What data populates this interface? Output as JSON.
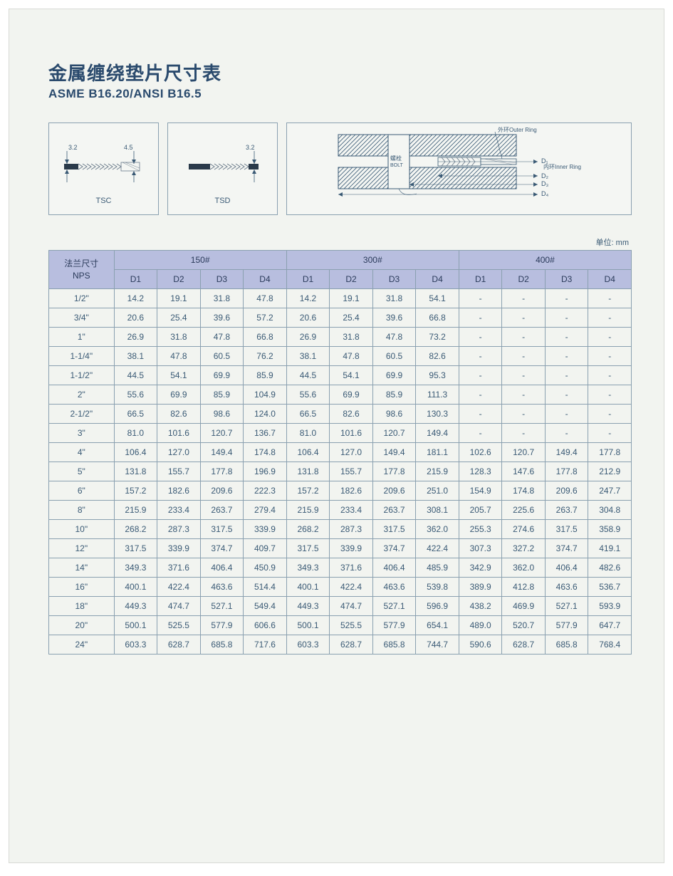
{
  "title_cn": "金属缠绕垫片尺寸表",
  "title_en": "ASME B16.20/ANSI B16.5",
  "unit_label": "单位: mm",
  "diagrams": {
    "tsc_label": "TSC",
    "tsd_label": "TSD",
    "tsc_dim_left": "3.2",
    "tsc_dim_right": "4.5",
    "tsd_dim": "3.2",
    "outer_ring_label": "外环Outer Ring",
    "inner_ring_label": "内环Inner Ring",
    "bolt_label_cn": "螺栓",
    "bolt_label_en": "BOLT",
    "d1_label": "D₁",
    "d2_label": "D₂",
    "d3_label": "D₃",
    "d4_label": "D₄"
  },
  "table": {
    "nps_header_cn": "法兰尺寸",
    "nps_header_en": "NPS",
    "class_headers": [
      "150#",
      "300#",
      "400#"
    ],
    "sub_headers": [
      "D1",
      "D2",
      "D3",
      "D4"
    ],
    "rows": [
      {
        "nps": "1/2\"",
        "v": [
          "14.2",
          "19.1",
          "31.8",
          "47.8",
          "14.2",
          "19.1",
          "31.8",
          "54.1",
          "-",
          "-",
          "-",
          "-"
        ]
      },
      {
        "nps": "3/4\"",
        "v": [
          "20.6",
          "25.4",
          "39.6",
          "57.2",
          "20.6",
          "25.4",
          "39.6",
          "66.8",
          "-",
          "-",
          "-",
          "-"
        ]
      },
      {
        "nps": "1\"",
        "v": [
          "26.9",
          "31.8",
          "47.8",
          "66.8",
          "26.9",
          "31.8",
          "47.8",
          "73.2",
          "-",
          "-",
          "-",
          "-"
        ]
      },
      {
        "nps": "1-1/4\"",
        "v": [
          "38.1",
          "47.8",
          "60.5",
          "76.2",
          "38.1",
          "47.8",
          "60.5",
          "82.6",
          "-",
          "-",
          "-",
          "-"
        ]
      },
      {
        "nps": "1-1/2\"",
        "v": [
          "44.5",
          "54.1",
          "69.9",
          "85.9",
          "44.5",
          "54.1",
          "69.9",
          "95.3",
          "-",
          "-",
          "-",
          "-"
        ]
      },
      {
        "nps": "2\"",
        "v": [
          "55.6",
          "69.9",
          "85.9",
          "104.9",
          "55.6",
          "69.9",
          "85.9",
          "111.3",
          "-",
          "-",
          "-",
          "-"
        ]
      },
      {
        "nps": "2-1/2\"",
        "v": [
          "66.5",
          "82.6",
          "98.6",
          "124.0",
          "66.5",
          "82.6",
          "98.6",
          "130.3",
          "-",
          "-",
          "-",
          "-"
        ]
      },
      {
        "nps": "3\"",
        "v": [
          "81.0",
          "101.6",
          "120.7",
          "136.7",
          "81.0",
          "101.6",
          "120.7",
          "149.4",
          "-",
          "-",
          "-",
          "-"
        ]
      },
      {
        "nps": "4\"",
        "v": [
          "106.4",
          "127.0",
          "149.4",
          "174.8",
          "106.4",
          "127.0",
          "149.4",
          "181.1",
          "102.6",
          "120.7",
          "149.4",
          "177.8"
        ]
      },
      {
        "nps": "5\"",
        "v": [
          "131.8",
          "155.7",
          "177.8",
          "196.9",
          "131.8",
          "155.7",
          "177.8",
          "215.9",
          "128.3",
          "147.6",
          "177.8",
          "212.9"
        ]
      },
      {
        "nps": "6\"",
        "v": [
          "157.2",
          "182.6",
          "209.6",
          "222.3",
          "157.2",
          "182.6",
          "209.6",
          "251.0",
          "154.9",
          "174.8",
          "209.6",
          "247.7"
        ]
      },
      {
        "nps": "8\"",
        "v": [
          "215.9",
          "233.4",
          "263.7",
          "279.4",
          "215.9",
          "233.4",
          "263.7",
          "308.1",
          "205.7",
          "225.6",
          "263.7",
          "304.8"
        ]
      },
      {
        "nps": "10\"",
        "v": [
          "268.2",
          "287.3",
          "317.5",
          "339.9",
          "268.2",
          "287.3",
          "317.5",
          "362.0",
          "255.3",
          "274.6",
          "317.5",
          "358.9"
        ]
      },
      {
        "nps": "12\"",
        "v": [
          "317.5",
          "339.9",
          "374.7",
          "409.7",
          "317.5",
          "339.9",
          "374.7",
          "422.4",
          "307.3",
          "327.2",
          "374.7",
          "419.1"
        ]
      },
      {
        "nps": "14\"",
        "v": [
          "349.3",
          "371.6",
          "406.4",
          "450.9",
          "349.3",
          "371.6",
          "406.4",
          "485.9",
          "342.9",
          "362.0",
          "406.4",
          "482.6"
        ]
      },
      {
        "nps": "16\"",
        "v": [
          "400.1",
          "422.4",
          "463.6",
          "514.4",
          "400.1",
          "422.4",
          "463.6",
          "539.8",
          "389.9",
          "412.8",
          "463.6",
          "536.7"
        ]
      },
      {
        "nps": "18\"",
        "v": [
          "449.3",
          "474.7",
          "527.1",
          "549.4",
          "449.3",
          "474.7",
          "527.1",
          "596.9",
          "438.2",
          "469.9",
          "527.1",
          "593.9"
        ]
      },
      {
        "nps": "20\"",
        "v": [
          "500.1",
          "525.5",
          "577.9",
          "606.6",
          "500.1",
          "525.5",
          "577.9",
          "654.1",
          "489.0",
          "520.7",
          "577.9",
          "647.7"
        ]
      },
      {
        "nps": "24\"",
        "v": [
          "603.3",
          "628.7",
          "685.8",
          "717.6",
          "603.3",
          "628.7",
          "685.8",
          "744.7",
          "590.6",
          "628.7",
          "685.8",
          "768.4"
        ]
      }
    ]
  },
  "styling": {
    "page_bg": "#f2f4f0",
    "border_color": "#8aa0b0",
    "header_bg": "#b8bedf",
    "text_color": "#3a5a75",
    "title_color": "#2a4a6d",
    "title_cn_fontsize": 26,
    "title_en_fontsize": 17,
    "table_fontsize": 12,
    "label_fontsize": 11
  }
}
